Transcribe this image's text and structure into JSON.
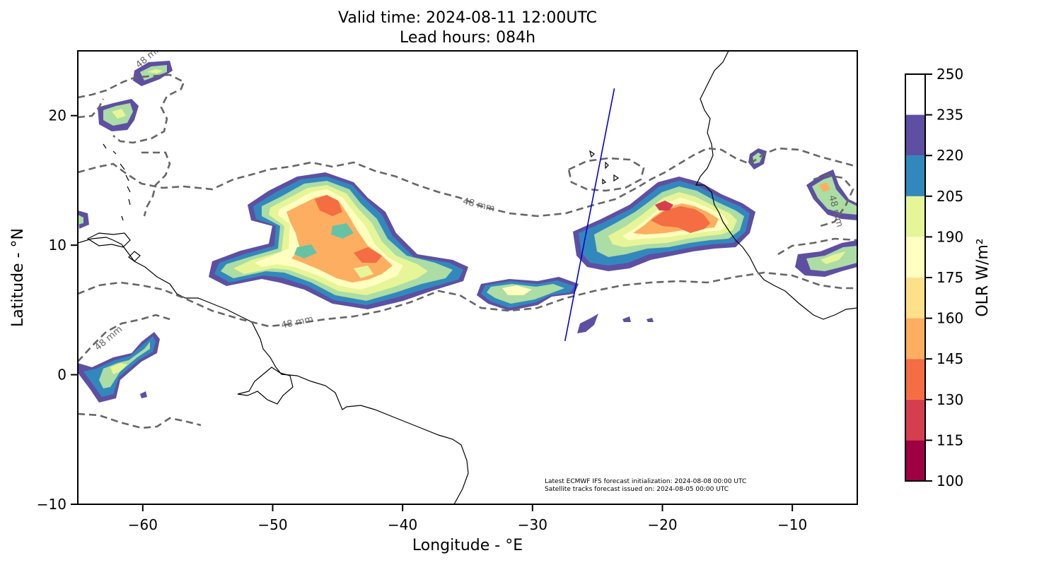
{
  "title": {
    "line1": "Valid time: 2024-08-11 12:00UTC",
    "line2": "Lead hours: 084h"
  },
  "map": {
    "xlabel": "Longitude - °E",
    "ylabel": "Latitude - °N",
    "xlim": [
      -65,
      -5
    ],
    "ylim": [
      -10,
      25
    ],
    "x_ticks": [
      -60,
      -50,
      -40,
      -30,
      -20,
      -10
    ],
    "y_ticks": [
      -10,
      0,
      10,
      20
    ],
    "x_tick_labels": [
      "−60",
      "−50",
      "−40",
      "−30",
      "−20",
      "−10"
    ],
    "y_tick_labels": [
      "−10",
      "0",
      "10",
      "20"
    ],
    "contour_label": "48 mm",
    "contour_color": "#666666",
    "track_color": "#0000dd",
    "coast_color": "#000000",
    "info_lines": [
      "Latest ECMWF IFS forecast initialization: 2024-08-08 00:00 UTC",
      "Satellite tracks forecast issued on: 2024-08-05 00:00 UTC"
    ],
    "satellite_track": {
      "start": [
        -27.5,
        2.6
      ],
      "end": [
        -23.7,
        22.1
      ]
    }
  },
  "colorbar": {
    "label": "OLR W/m²",
    "levels": [
      100,
      115,
      130,
      145,
      160,
      175,
      190,
      205,
      220,
      235,
      250
    ],
    "tick_labels": [
      "100",
      "115",
      "130",
      "145",
      "160",
      "175",
      "190",
      "205",
      "220",
      "235",
      "250"
    ],
    "colors": [
      "#9e0142",
      "#d53e4f",
      "#f46d43",
      "#fdae61",
      "#fee08b",
      "#ffffbf",
      "#e6f598",
      "#abdda4",
      "#66c2a5",
      "#3288bd",
      "#5e4fa2"
    ]
  }
}
